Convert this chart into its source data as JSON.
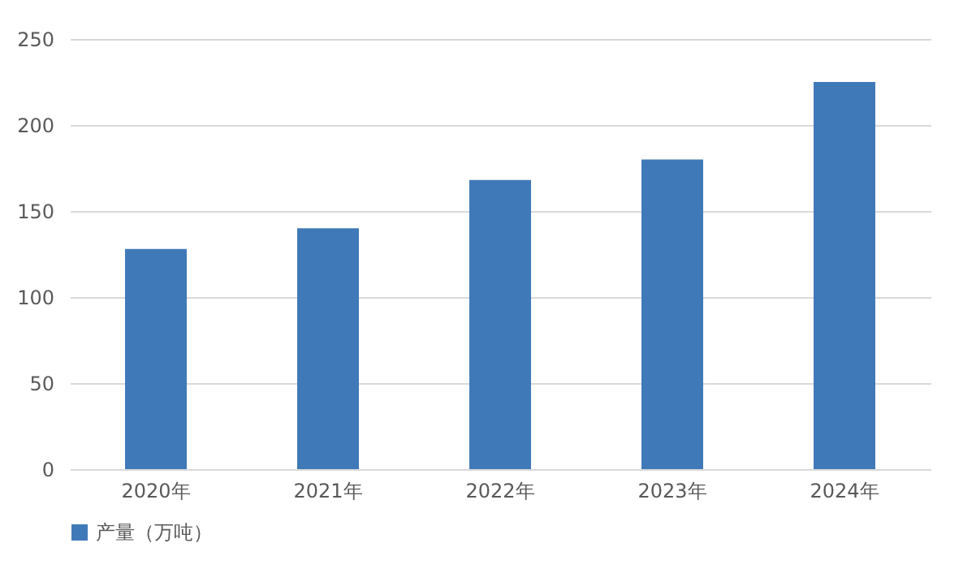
{
  "chart_data": {
    "type": "bar",
    "categories": [
      "2020年",
      "2021年",
      "2022年",
      "2023年",
      "2024年"
    ],
    "series": [
      {
        "name": "产量（万吨）",
        "color": "#4079b8",
        "values": [
          128,
          140,
          168,
          180,
          225
        ]
      }
    ],
    "ylim": [
      0,
      250
    ],
    "yticks": [
      0,
      50,
      100,
      150,
      200,
      250
    ],
    "grid": "y",
    "legend": "bottom"
  }
}
